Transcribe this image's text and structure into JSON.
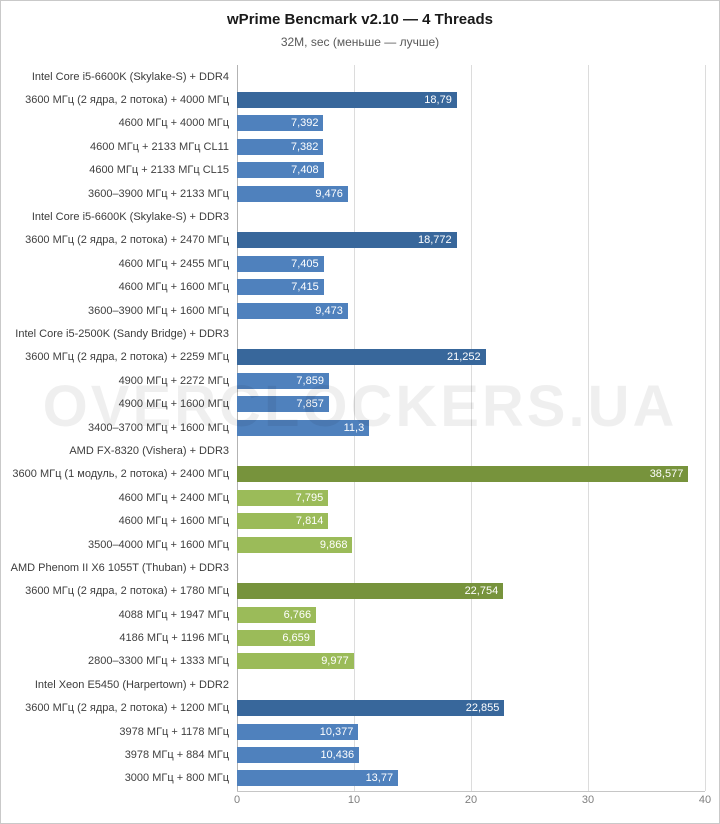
{
  "title": "wPrime Bencmark v2.10 — 4 Threads",
  "subtitle": "32M, sec (меньше — лучше)",
  "watermark": "OVERCLOCKERS.UA",
  "colors": {
    "palettes": {
      "blue": {
        "dark": "#38679b",
        "light": "#4f81bd"
      },
      "green": {
        "dark": "#77933c",
        "light": "#9bbb59"
      }
    },
    "gridline": "#dcdcdc",
    "axis_line": "#b3b3b3",
    "bar_value_text": "#ffffff",
    "category_text": "#404040",
    "tick_text": "#7f7f7f"
  },
  "chart_data": {
    "type": "bar",
    "orientation": "horizontal",
    "title": "wPrime Bencmark v2.10 — 4 Threads",
    "subtitle": "32M, sec (меньше — лучше)",
    "xlim": [
      0,
      40
    ],
    "xticks": [
      0,
      10,
      20,
      30,
      40
    ],
    "grid": true,
    "groups": [
      {
        "header": "Intel Core i5-6600K (Skylake-S) + DDR4",
        "palette": "blue",
        "bars": [
          {
            "label": "3600 МГц (2 ядра, 2 потока) + 4000 МГц",
            "value": 18.79,
            "display": "18,79",
            "shade": "dark"
          },
          {
            "label": "4600 МГц + 4000 МГц",
            "value": 7.392,
            "display": "7,392",
            "shade": "light"
          },
          {
            "label": "4600 МГц + 2133 МГц CL11",
            "value": 7.382,
            "display": "7,382",
            "shade": "light"
          },
          {
            "label": "4600 МГц + 2133 МГц CL15",
            "value": 7.408,
            "display": "7,408",
            "shade": "light"
          },
          {
            "label": "3600–3900 МГц + 2133 МГц",
            "value": 9.476,
            "display": "9,476",
            "shade": "light"
          }
        ]
      },
      {
        "header": "Intel Core i5-6600K (Skylake-S) + DDR3",
        "palette": "blue",
        "bars": [
          {
            "label": "3600 МГц (2 ядра, 2 потока) + 2470 МГц",
            "value": 18.772,
            "display": "18,772",
            "shade": "dark"
          },
          {
            "label": "4600 МГц + 2455 МГц",
            "value": 7.405,
            "display": "7,405",
            "shade": "light"
          },
          {
            "label": "4600 МГц + 1600 МГц",
            "value": 7.415,
            "display": "7,415",
            "shade": "light"
          },
          {
            "label": "3600–3900 МГц + 1600 МГц",
            "value": 9.473,
            "display": "9,473",
            "shade": "light"
          }
        ]
      },
      {
        "header": "Intel Core i5-2500K (Sandy Bridge) + DDR3",
        "palette": "blue",
        "bars": [
          {
            "label": "3600 МГц (2 ядра, 2 потока) + 2259 МГц",
            "value": 21.252,
            "display": "21,252",
            "shade": "dark"
          },
          {
            "label": "4900 МГц + 2272 МГц",
            "value": 7.859,
            "display": "7,859",
            "shade": "light"
          },
          {
            "label": "4900 МГц + 1600 МГц",
            "value": 7.857,
            "display": "7,857",
            "shade": "light"
          },
          {
            "label": "3400–3700 МГц + 1600 МГц",
            "value": 11.3,
            "display": "11,3",
            "shade": "light"
          }
        ]
      },
      {
        "header": "AMD FX-8320 (Vishera) + DDR3",
        "palette": "green",
        "bars": [
          {
            "label": "3600 МГц (1 модуль, 2 потока) + 2400 МГц",
            "value": 38.577,
            "display": "38,577",
            "shade": "dark"
          },
          {
            "label": "4600 МГц + 2400 МГц",
            "value": 7.795,
            "display": "7,795",
            "shade": "light"
          },
          {
            "label": "4600 МГц + 1600 МГц",
            "value": 7.814,
            "display": "7,814",
            "shade": "light"
          },
          {
            "label": "3500–4000 МГц + 1600 МГц",
            "value": 9.868,
            "display": "9,868",
            "shade": "light"
          }
        ]
      },
      {
        "header": "AMD Phenom II X6 1055T (Thuban) + DDR3",
        "palette": "green",
        "bars": [
          {
            "label": "3600 МГц (2 ядра, 2 потока) + 1780 МГц",
            "value": 22.754,
            "display": "22,754",
            "shade": "dark"
          },
          {
            "label": "4088 МГц + 1947 МГц",
            "value": 6.766,
            "display": "6,766",
            "shade": "light"
          },
          {
            "label": "4186 МГц + 1196 МГц",
            "value": 6.659,
            "display": "6,659",
            "shade": "light"
          },
          {
            "label": "2800–3300 МГц + 1333 МГц",
            "value": 9.977,
            "display": "9,977",
            "shade": "light"
          }
        ]
      },
      {
        "header": "Intel Xeon E5450 (Harpertown) + DDR2",
        "palette": "blue",
        "bars": [
          {
            "label": "3600 МГц (2 ядра, 2 потока) + 1200 МГц",
            "value": 22.855,
            "display": "22,855",
            "shade": "dark"
          },
          {
            "label": "3978 МГц + 1178 МГц",
            "value": 10.377,
            "display": "10,377",
            "shade": "light"
          },
          {
            "label": "3978 МГц + 884 МГц",
            "value": 10.436,
            "display": "10,436",
            "shade": "light"
          },
          {
            "label": "3000 МГц + 800 МГц",
            "value": 13.77,
            "display": "13,77",
            "shade": "light"
          }
        ]
      }
    ]
  }
}
